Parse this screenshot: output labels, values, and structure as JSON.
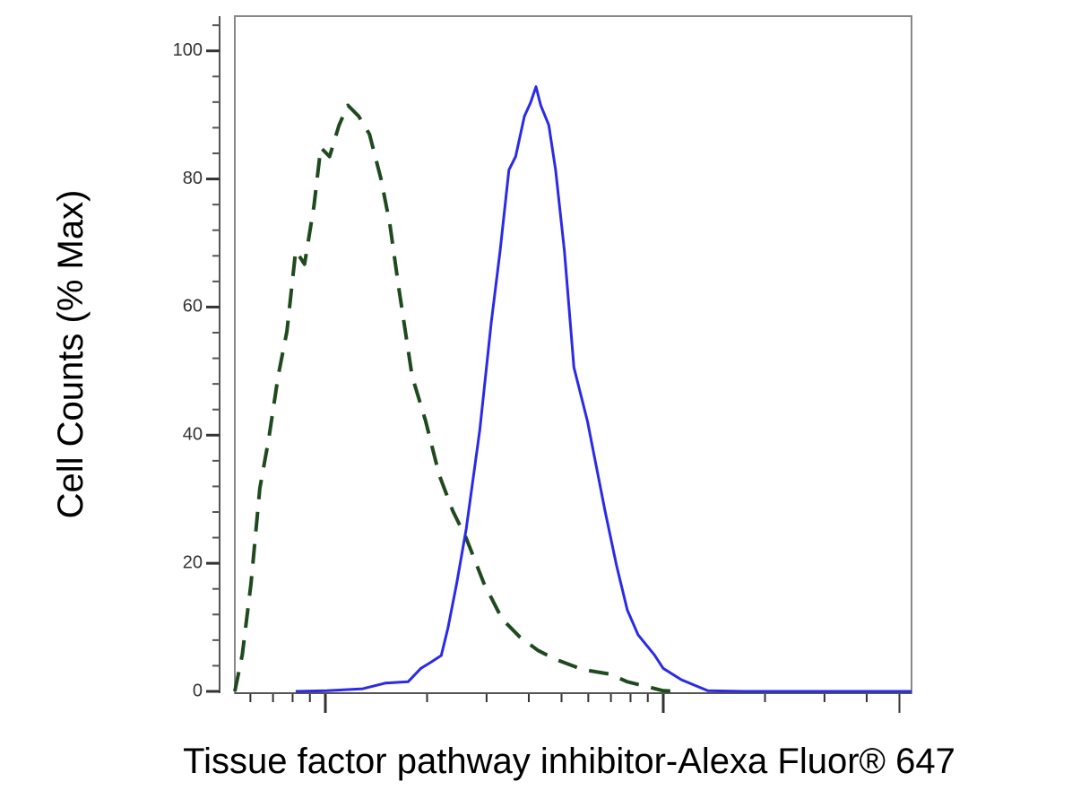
{
  "chart_data": {
    "type": "line",
    "x_label": "Tissue factor pathway inhibitor-Alexa Fluor® 647",
    "y_label": "Cell Counts (% Max)",
    "xlim": [
      0,
      100
    ],
    "xscale": "log",
    "ylim": [
      0,
      105
    ],
    "yticks": [
      0,
      20,
      40,
      60,
      80,
      100
    ],
    "series": [
      {
        "color": "#1e4a1e",
        "dash": true,
        "x": [
          0,
          1.1,
          2.4,
          3.7,
          5.0,
          6.4,
          7.7,
          9.0,
          10.3,
          11.7,
          12.7,
          14.0,
          15.4,
          16.7,
          18.3,
          19.9,
          21.6,
          22.9,
          24.2,
          26.2,
          28.2,
          30.2,
          32.2,
          34.2,
          36.8,
          39.5,
          42.1,
          44.8,
          47.4,
          51.4,
          55.4,
          58.0,
          60.7,
          63.3,
          66.0
        ],
        "values": [
          0,
          5.7,
          16.9,
          31.7,
          39.4,
          49.2,
          56.2,
          68.8,
          66.7,
          75.8,
          84.9,
          83.5,
          88.4,
          91.5,
          89.8,
          87.0,
          80.0,
          73.0,
          63.2,
          49.2,
          42.2,
          33.8,
          28.2,
          23.9,
          16.9,
          11.3,
          8.5,
          6.4,
          5.0,
          3.4,
          2.7,
          1.5,
          0.8,
          0.1,
          0
        ]
      },
      {
        "color": "#2a2ae8",
        "dash": false,
        "x": [
          9.0,
          13.6,
          18.9,
          22.3,
          25.6,
          27.5,
          28.9,
          30.5,
          31.5,
          32.8,
          34.2,
          36.2,
          37.9,
          39.2,
          40.5,
          41.5,
          42.8,
          43.7,
          44.5,
          45.2,
          46.4,
          47.4,
          48.7,
          50.1,
          52.1,
          53.4,
          54.7,
          56.4,
          58.0,
          59.6,
          62.0,
          63.3,
          66.0,
          69.9,
          75.2,
          100
        ],
        "values": [
          0,
          0.1,
          0.4,
          1.3,
          1.5,
          3.6,
          4.5,
          5.6,
          9.9,
          16.9,
          25.4,
          40.8,
          57.6,
          68.8,
          81.4,
          83.5,
          89.8,
          91.9,
          94.4,
          91.5,
          88.4,
          81.4,
          68.8,
          50.6,
          42.2,
          35.2,
          28.2,
          19.7,
          12.7,
          8.8,
          5.7,
          3.6,
          1.8,
          0.1,
          0,
          0
        ]
      }
    ]
  }
}
